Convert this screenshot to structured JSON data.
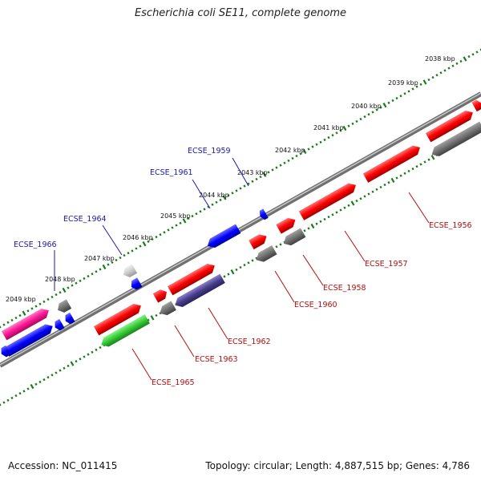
{
  "title": "Escherichia coli SE11, complete genome",
  "accession": "Accession: NC_011415",
  "summary": "Topology: circular; Length: 4,887,515 bp; Genes: 4,786",
  "kbp_labels": [
    "2038 kbp",
    "2039 kbp",
    "2040 kbp",
    "2041 kbp",
    "2042 kbp",
    "2043 kbp",
    "2044 kbp",
    "2045 kbp",
    "2046 kbp",
    "2047 kbp",
    "2048 kbp",
    "2049 kbp"
  ],
  "genes_top": [
    "ECSE_1959",
    "ECSE_1961",
    "ECSE_1964",
    "ECSE_1966"
  ],
  "genes_bottom": [
    "ECSE_1956",
    "ECSE_1957",
    "ECSE_1958",
    "ECSE_1960",
    "ECSE_1962",
    "ECSE_1963",
    "ECSE_1965"
  ],
  "colors": {
    "forward": "#ff0000",
    "blue": "#0000ff",
    "grey": "#707070",
    "pink": "#ff1493",
    "green": "#33cc33",
    "navy": "#483d8b",
    "tick": "#1a7a1a"
  }
}
